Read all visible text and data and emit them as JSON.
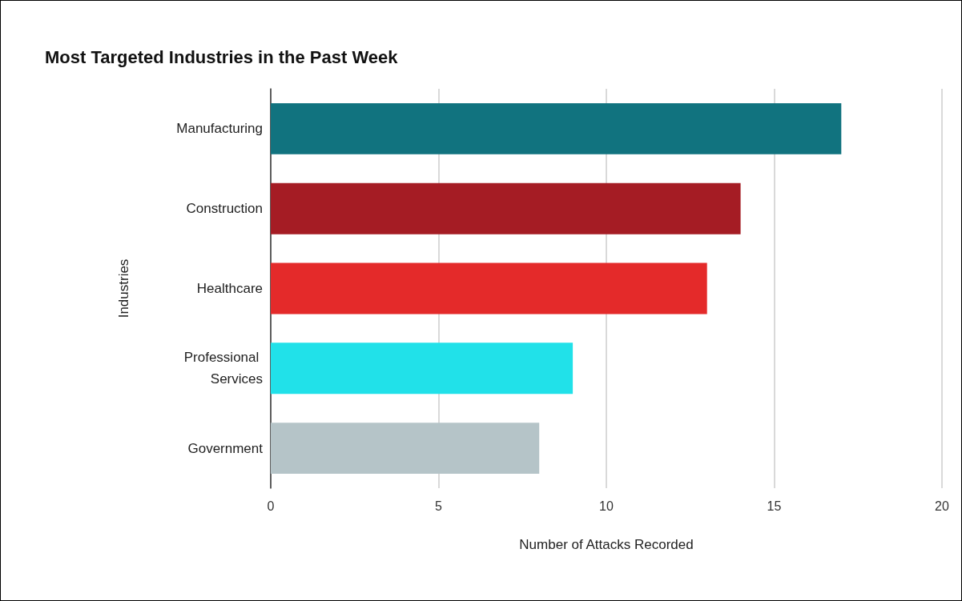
{
  "chart_data": {
    "type": "bar",
    "orientation": "horizontal",
    "title": "Most Targeted Industries in the Past Week",
    "xlabel": "Number of Attacks Recorded",
    "ylabel": "Industries",
    "categories": [
      "Manufacturing",
      "Construction",
      "Healthcare",
      "Professional Services",
      "Government"
    ],
    "values": [
      17,
      14,
      13,
      9,
      8
    ],
    "colors": [
      "#11737f",
      "#a51c24",
      "#e42a2a",
      "#21e1e9",
      "#b5c4c8"
    ],
    "xlim": [
      0,
      20
    ],
    "xticks": [
      0,
      5,
      10,
      15,
      20
    ],
    "grid": "x"
  }
}
